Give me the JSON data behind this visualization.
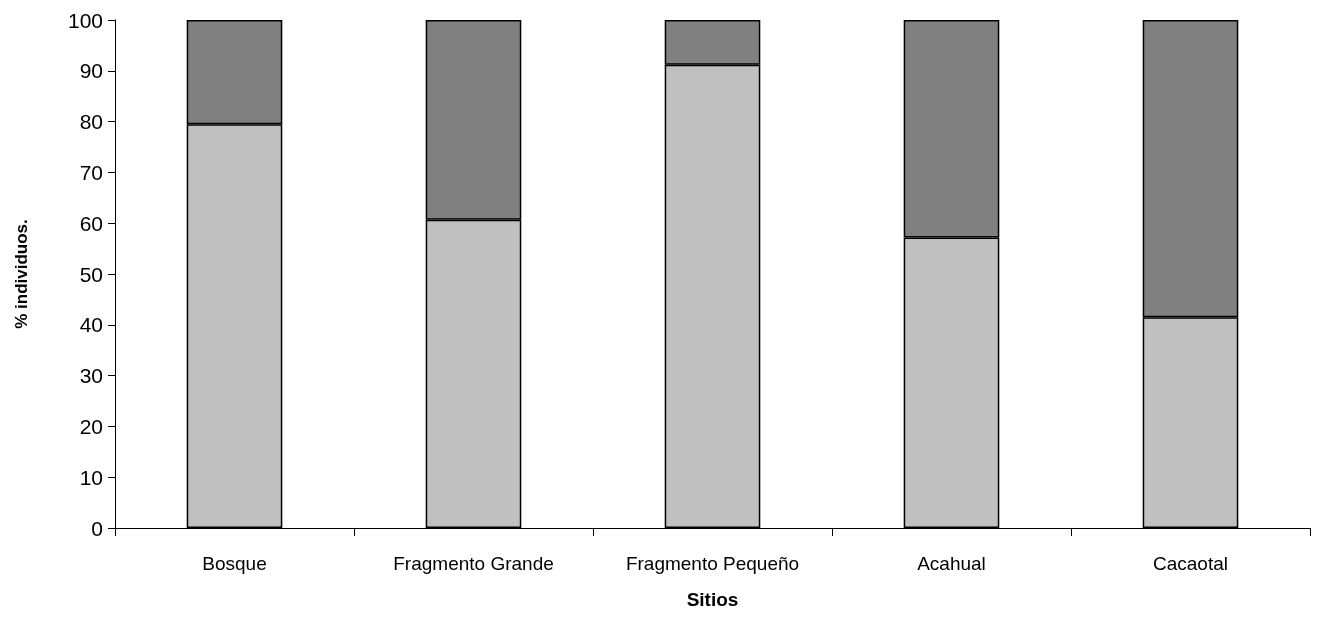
{
  "chart_data": {
    "type": "bar",
    "stacked": true,
    "xlabel": "Sitios",
    "ylabel": "% individuos.",
    "categories": [
      "Bosque",
      "Fragmento Grande",
      "Fragmento Pequeño",
      "Acahual",
      "Cacaotal"
    ],
    "series": [
      {
        "color": "#c0c0c0",
        "values": [
          79.5,
          60.7,
          91.2,
          57.2,
          41.5
        ]
      },
      {
        "color": "#808080",
        "values": [
          20.5,
          39.3,
          8.8,
          42.8,
          58.5
        ]
      }
    ],
    "ylim": [
      0,
      100
    ],
    "yticks": [
      0,
      10,
      20,
      30,
      40,
      50,
      60,
      70,
      80,
      90,
      100
    ],
    "grid": false
  }
}
